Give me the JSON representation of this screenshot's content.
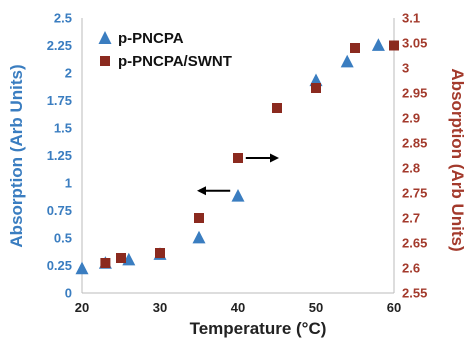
{
  "chart_data": {
    "type": "scatter",
    "xlabel": "Temperature (°C)",
    "ylabel_left": "Absorption (Arb Units)",
    "ylabel_right": "Absorption (Arb Units)",
    "xlim": [
      20,
      60
    ],
    "ylim_left": [
      0,
      2.5
    ],
    "ylim_right": [
      2.55,
      3.1
    ],
    "x_ticks": [
      "20",
      "30",
      "40",
      "50",
      "60"
    ],
    "y_left_ticks": [
      "0",
      "0.25",
      "0.5",
      "0.75",
      "1",
      "1.25",
      "1.5",
      "1.75",
      "2",
      "2.25",
      "2.5"
    ],
    "y_right_ticks": [
      "2.55",
      "2.6",
      "2.65",
      "2.7",
      "2.75",
      "2.8",
      "2.85",
      "2.9",
      "2.95",
      "3",
      "3.05",
      "3.1"
    ],
    "grid": false,
    "legend_position": "top-left",
    "series": [
      {
        "name": "p-PNCPA",
        "axis": "left",
        "marker": "triangle",
        "color": "#3a7dc0",
        "x": [
          20,
          23,
          26,
          30,
          35,
          40,
          50,
          54,
          58
        ],
        "y": [
          0.22,
          0.27,
          0.3,
          0.35,
          0.5,
          0.88,
          1.93,
          2.1,
          2.25
        ]
      },
      {
        "name": "p-PNCPA/SWNT",
        "axis": "right",
        "marker": "square",
        "color": "#8b2a1f",
        "x": [
          23,
          25,
          30,
          35,
          40,
          45,
          50,
          55,
          60
        ],
        "y": [
          2.61,
          2.62,
          2.63,
          2.7,
          2.82,
          2.92,
          2.96,
          3.04,
          3.045
        ]
      }
    ],
    "annotations": [
      {
        "type": "arrow",
        "direction": "left",
        "x_range": [
          35,
          39
        ],
        "y_left": 0.93,
        "meaning": "left axis"
      },
      {
        "type": "arrow",
        "direction": "right",
        "x_range": [
          41,
          45
        ],
        "y_right": 2.82,
        "meaning": "right axis"
      }
    ]
  }
}
